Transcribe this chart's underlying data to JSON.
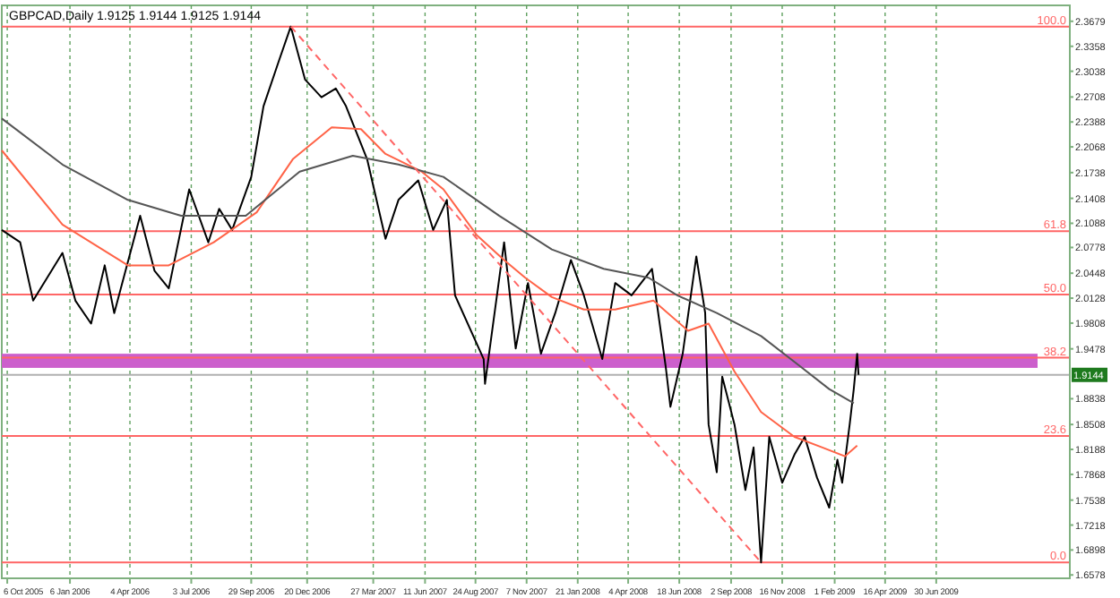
{
  "chart_data": {
    "type": "line",
    "title": "GBPCAD,Daily  1.9125 1.9144 1.9125 1.9144",
    "xlim": [
      "2005-09-28",
      "2010-01-12"
    ],
    "ylim": [
      1.6535,
      2.3883
    ],
    "xticks": [
      {
        "value": "2005-10-06",
        "label": "6 Oct 2005"
      },
      {
        "value": "2006-01-06",
        "label": "6 Jan 2006"
      },
      {
        "value": "2006-04-04",
        "label": "4 Apr 2006"
      },
      {
        "value": "2006-07-03",
        "label": "3 Jul 2006"
      },
      {
        "value": "2006-09-29",
        "label": "29 Sep 2006"
      },
      {
        "value": "2006-12-20",
        "label": "20 Dec 2006"
      },
      {
        "value": "2007-03-27",
        "label": "27 Mar 2007"
      },
      {
        "value": "2007-06-11",
        "label": "11 Jun 2007"
      },
      {
        "value": "2007-08-24",
        "label": "24 Aug 2007"
      },
      {
        "value": "2007-11-07",
        "label": "7 Nov 2007"
      },
      {
        "value": "2008-01-21",
        "label": "21 Jan 2008"
      },
      {
        "value": "2008-04-04",
        "label": "4 Apr 2008"
      },
      {
        "value": "2008-06-18",
        "label": "18 Jun 2008"
      },
      {
        "value": "2008-09-02",
        "label": "2 Sep 2008"
      },
      {
        "value": "2008-11-16",
        "label": "16 Nov 2008"
      },
      {
        "value": "2009-02-01",
        "label": "1 Feb 2009"
      },
      {
        "value": "2009-04-16",
        "label": "16 Apr 2009"
      },
      {
        "value": "2009-06-30",
        "label": "30 Jun 2009"
      }
    ],
    "yticks": [
      1.6578,
      1.6898,
      1.7218,
      1.7538,
      1.7868,
      1.8188,
      1.8508,
      1.8838,
      1.9478,
      1.9808,
      2.0128,
      2.0448,
      2.0778,
      2.1088,
      2.1408,
      2.1738,
      2.2068,
      2.2388,
      2.2708,
      2.3038,
      2.3358,
      2.3679
    ],
    "grid": "x",
    "marker": "none",
    "series": [
      {
        "color": "#000000",
        "x": [
          "2005-09-28",
          "2005-10-25",
          "2005-11-13",
          "2005-12-26",
          "2006-01-14",
          "2006-02-06",
          "2006-02-26",
          "2006-03-12",
          "2006-04-19",
          "2006-05-10",
          "2006-05-31",
          "2006-06-30",
          "2006-07-28",
          "2006-08-13",
          "2006-09-01",
          "2006-09-29",
          "2006-10-17",
          "2006-11-08",
          "2006-11-26",
          "2006-12-17",
          "2007-01-10",
          "2007-01-31",
          "2007-02-15",
          "2007-03-18",
          "2007-04-14",
          "2007-05-03",
          "2007-06-01",
          "2007-06-23",
          "2007-07-13",
          "2007-07-25",
          "2007-09-05",
          "2007-09-07",
          "2007-10-05",
          "2007-10-22",
          "2007-11-09",
          "2007-11-28",
          "2007-12-19",
          "2008-01-11",
          "2008-01-30",
          "2008-02-26",
          "2008-03-16",
          "2008-04-09",
          "2008-05-09",
          "2008-05-29",
          "2008-06-05",
          "2008-06-23",
          "2008-07-13",
          "2008-07-26",
          "2008-07-31",
          "2008-08-12",
          "2008-08-20",
          "2008-09-07",
          "2008-09-23",
          "2008-10-05",
          "2008-10-16",
          "2008-10-28",
          "2008-11-16",
          "2008-12-04",
          "2008-12-19",
          "2009-01-06",
          "2009-01-24",
          "2009-02-05",
          "2009-02-12",
          "2009-02-23",
          "2009-03-01",
          "2009-03-06",
          "2009-03-08"
        ],
        "values": [
          2.1003,
          2.0844,
          2.0096,
          2.0708,
          2.0096,
          1.9801,
          2.0549,
          1.9937,
          2.1184,
          2.0481,
          2.0254,
          2.1524,
          2.0844,
          2.1275,
          2.1003,
          2.1683,
          2.259,
          2.3157,
          2.3611,
          2.2931,
          2.2704,
          2.2817,
          2.259,
          2.191,
          2.0889,
          2.1388,
          2.1638,
          2.1003,
          2.1388,
          2.0164,
          1.9347,
          1.903,
          2.0844,
          1.9483,
          2.0322,
          1.9415,
          1.9937,
          2.0617,
          2.0164,
          1.9347,
          2.0322,
          2.0164,
          2.0504,
          1.9256,
          1.8735,
          1.9415,
          2.0663,
          1.9937,
          1.8508,
          1.7896,
          1.912,
          1.8508,
          1.7669,
          1.8213,
          1.6739,
          1.8349,
          1.776,
          1.8122,
          1.8349,
          1.7828,
          1.7442,
          1.8055,
          1.776,
          1.8508,
          1.8962,
          1.9415,
          1.9144
        ]
      },
      {
        "color": "#ff6347",
        "x": [
          "2005-09-28",
          "2005-12-26",
          "2006-04-01",
          "2006-05-31",
          "2006-08-05",
          "2006-10-07",
          "2006-11-29",
          "2007-01-25",
          "2007-03-09",
          "2007-04-14",
          "2007-06-06",
          "2007-07-08",
          "2007-08-26",
          "2007-10-05",
          "2007-11-05",
          "2007-12-14",
          "2008-01-30",
          "2008-03-16",
          "2008-05-11",
          "2008-07-01",
          "2008-07-31",
          "2008-09-07",
          "2008-10-16",
          "2008-12-04",
          "2009-01-14",
          "2009-02-16",
          "2009-03-06"
        ],
        "values": [
          2.2023,
          2.1071,
          2.0549,
          2.0549,
          2.0844,
          2.123,
          2.191,
          2.2318,
          2.2296,
          2.1978,
          2.1751,
          2.1524,
          2.0935,
          2.0617,
          2.039,
          2.0141,
          1.9982,
          1.9982,
          2.0096,
          1.971,
          1.9801,
          1.9188,
          1.8667,
          1.8349,
          1.8213,
          1.81,
          1.8236
        ]
      },
      {
        "color": "#555555",
        "x": [
          "2005-09-28",
          "2005-12-26",
          "2006-04-01",
          "2006-06-18",
          "2006-09-21",
          "2006-12-09",
          "2007-02-25",
          "2007-05-03",
          "2007-07-08",
          "2007-09-28",
          "2007-12-14",
          "2008-02-28",
          "2008-05-04",
          "2008-06-15",
          "2008-08-12",
          "2008-10-16",
          "2008-12-12",
          "2009-01-24",
          "2009-03-01"
        ],
        "values": [
          2.2432,
          2.1842,
          2.1388,
          2.1184,
          2.1184,
          2.1751,
          2.1955,
          2.1842,
          2.1683,
          2.1184,
          2.0753,
          2.0504,
          2.039,
          2.0164,
          1.9937,
          1.9642,
          1.9256,
          1.8962,
          1.878
        ]
      },
      {
        "color": "#ff6666",
        "line_style": "dashed",
        "x": [
          "2006-11-26",
          "2008-10-16"
        ],
        "values": [
          2.3611,
          1.6739
        ]
      }
    ],
    "ref_lines": [
      {
        "axis": "y",
        "value": 2.3611,
        "color": "#ff6666"
      },
      {
        "axis": "y",
        "value": 2.0986,
        "color": "#ff6666"
      },
      {
        "axis": "y",
        "value": 2.0175,
        "color": "#ff6666"
      },
      {
        "axis": "y",
        "value": 1.9364,
        "color": "#ff6666"
      },
      {
        "axis": "y",
        "value": 1.8361,
        "color": "#ff6666"
      },
      {
        "axis": "y",
        "value": 1.6739,
        "color": "#ff6666"
      },
      {
        "axis": "y",
        "value": 1.9144,
        "label": "1.9144",
        "color": "#b0b0b0"
      }
    ],
    "bands": [
      {
        "axis": "y",
        "from": 1.9234,
        "to": 1.9415,
        "color": "#cc5fcc"
      }
    ],
    "annotations": [
      {
        "text": "100.0",
        "x": "2010-01-12",
        "y": 2.3611
      },
      {
        "text": "61.8",
        "x": "2010-01-12",
        "y": 2.0986
      },
      {
        "text": "50.0",
        "x": "2010-01-12",
        "y": 2.0175
      },
      {
        "text": "38.2",
        "x": "2010-01-12",
        "y": 1.9364
      },
      {
        "text": "23.6",
        "x": "2010-01-12",
        "y": 1.8361
      },
      {
        "text": "0.0",
        "x": "2010-01-12",
        "y": 1.6739
      }
    ]
  }
}
